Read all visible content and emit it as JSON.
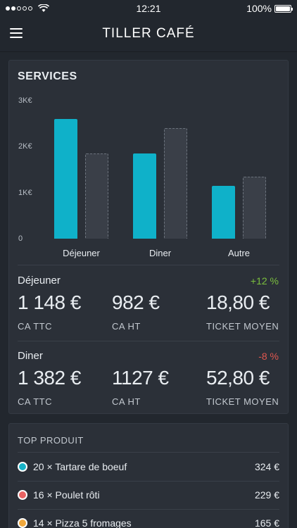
{
  "status_bar": {
    "time": "12:21",
    "battery": "100%"
  },
  "header": {
    "title": "TILLER CAFÉ"
  },
  "services": {
    "title": "SERVICES",
    "y_ticks": [
      "3K€",
      "2K€",
      "1K€",
      "0"
    ],
    "rows": [
      {
        "name": "Déjeuner",
        "delta": "+12 %",
        "delta_color": "#7bbf3e",
        "ca_ttc": "1 148 €",
        "ca_ht": "982 €",
        "ticket": "18,80 €",
        "ca_ttc_label": "CA TTC",
        "ca_ht_label": "CA HT",
        "ticket_label": "TICKET MOYEN"
      },
      {
        "name": "Diner",
        "delta": "-8 %",
        "delta_color": "#e0574f",
        "ca_ttc": "1 382 €",
        "ca_ht": "1127 €",
        "ticket": "52,80 €",
        "ca_ttc_label": "CA TTC",
        "ca_ht_label": "CA HT",
        "ticket_label": "TICKET MOYEN"
      }
    ]
  },
  "chart_data": {
    "type": "bar",
    "categories": [
      "Déjeuner",
      "Diner",
      "Autre"
    ],
    "series": [
      {
        "values": [
          2600,
          1850,
          1150
        ],
        "color": "#0fb1c9"
      },
      {
        "values": [
          1850,
          2400,
          1350
        ],
        "color": "#3a3f48"
      }
    ],
    "ylim": [
      0,
      3000
    ],
    "y_ticks": [
      "3K€",
      "2K€",
      "1K€",
      "0"
    ]
  },
  "top_produit": {
    "title": "TOP PRODUIT",
    "items": [
      {
        "label": "20 × Tartare de boeuf",
        "value": "324 €",
        "color": "#17b2c7"
      },
      {
        "label": "16 × Poulet rôti",
        "value": "229 €",
        "color": "#e86363"
      },
      {
        "label": "14 × Pizza 5 fromages",
        "value": "165 €",
        "color": "#f0a83c"
      }
    ]
  }
}
